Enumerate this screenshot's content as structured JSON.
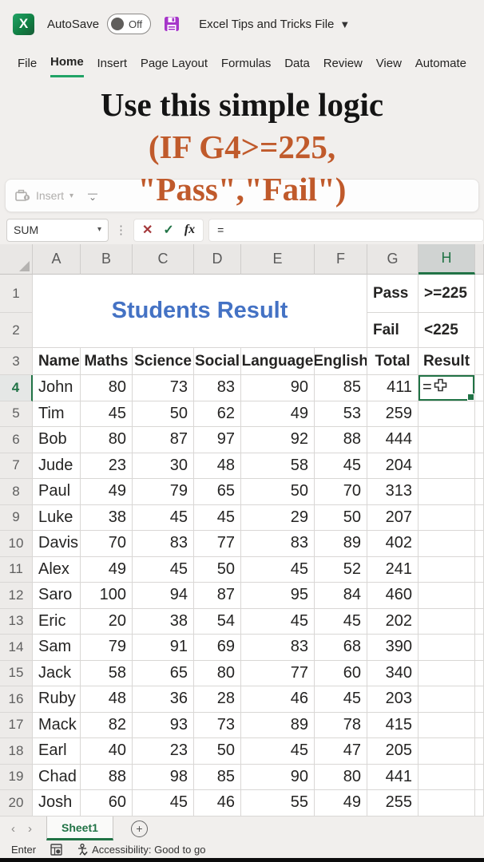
{
  "titlebar": {
    "app_icon": "excel-logo",
    "autosave_label": "AutoSave",
    "autosave_state": "Off",
    "save_icon": "save-floppy-icon",
    "doc_title": "Excel Tips and Tricks File",
    "doc_title_chevron": "chevron-down-icon"
  },
  "ribbon_tabs": [
    {
      "label": "File",
      "active": false
    },
    {
      "label": "Home",
      "active": true
    },
    {
      "label": "Insert",
      "active": false
    },
    {
      "label": "Page Layout",
      "active": false
    },
    {
      "label": "Formulas",
      "active": false
    },
    {
      "label": "Data",
      "active": false
    },
    {
      "label": "Review",
      "active": false
    },
    {
      "label": "View",
      "active": false
    },
    {
      "label": "Automate",
      "active": false
    }
  ],
  "overlay": {
    "line1": "Use this simple logic",
    "line2": "(IF G4>=225,",
    "line3": "\"Pass\",\"Fail\")",
    "accent_color": "#c05a2b"
  },
  "collapsed_ribbon": {
    "insert_label": "Insert"
  },
  "formula_bar": {
    "name_box_value": "SUM",
    "formula_value": "="
  },
  "grid": {
    "column_letters": [
      "A",
      "B",
      "C",
      "D",
      "E",
      "F",
      "G",
      "H"
    ],
    "selected_column": "H",
    "selected_row": 4,
    "title_cell": "Students Result",
    "title_color": "#4472c4",
    "criteria": [
      {
        "label": "Pass",
        "value": ">=225"
      },
      {
        "label": "Fail",
        "value": "<225"
      }
    ],
    "headers": [
      "Name",
      "Maths",
      "Science",
      "Social",
      "Language",
      "English",
      "Total",
      "Result"
    ],
    "rows": [
      {
        "row": 4,
        "name": "John",
        "scores": [
          80,
          73,
          83,
          90,
          85
        ],
        "total": 411,
        "result": "="
      },
      {
        "row": 5,
        "name": "Tim",
        "scores": [
          45,
          50,
          62,
          49,
          53
        ],
        "total": 259,
        "result": ""
      },
      {
        "row": 6,
        "name": "Bob",
        "scores": [
          80,
          87,
          97,
          92,
          88
        ],
        "total": 444,
        "result": ""
      },
      {
        "row": 7,
        "name": "Jude",
        "scores": [
          23,
          30,
          48,
          58,
          45
        ],
        "total": 204,
        "result": ""
      },
      {
        "row": 8,
        "name": "Paul",
        "scores": [
          49,
          79,
          65,
          50,
          70
        ],
        "total": 313,
        "result": ""
      },
      {
        "row": 9,
        "name": "Luke",
        "scores": [
          38,
          45,
          45,
          29,
          50
        ],
        "total": 207,
        "result": ""
      },
      {
        "row": 10,
        "name": "Davis",
        "scores": [
          70,
          83,
          77,
          83,
          89
        ],
        "total": 402,
        "result": ""
      },
      {
        "row": 11,
        "name": "Alex",
        "scores": [
          49,
          45,
          50,
          45,
          52
        ],
        "total": 241,
        "result": ""
      },
      {
        "row": 12,
        "name": "Saro",
        "scores": [
          100,
          94,
          87,
          95,
          84
        ],
        "total": 460,
        "result": ""
      },
      {
        "row": 13,
        "name": "Eric",
        "scores": [
          20,
          38,
          54,
          45,
          45
        ],
        "total": 202,
        "result": ""
      },
      {
        "row": 14,
        "name": "Sam",
        "scores": [
          79,
          91,
          69,
          83,
          68
        ],
        "total": 390,
        "result": ""
      },
      {
        "row": 15,
        "name": "Jack",
        "scores": [
          58,
          65,
          80,
          77,
          60
        ],
        "total": 340,
        "result": ""
      },
      {
        "row": 16,
        "name": "Ruby",
        "scores": [
          48,
          36,
          28,
          46,
          45
        ],
        "total": 203,
        "result": ""
      },
      {
        "row": 17,
        "name": "Mack",
        "scores": [
          82,
          93,
          73,
          89,
          78
        ],
        "total": 415,
        "result": ""
      },
      {
        "row": 18,
        "name": "Earl",
        "scores": [
          40,
          23,
          50,
          45,
          47
        ],
        "total": 205,
        "result": ""
      },
      {
        "row": 19,
        "name": "Chad",
        "scores": [
          88,
          98,
          85,
          90,
          80
        ],
        "total": 441,
        "result": ""
      },
      {
        "row": 20,
        "name": "Josh",
        "scores": [
          60,
          45,
          46,
          55,
          49
        ],
        "total": 255,
        "result": ""
      }
    ]
  },
  "sheet_bar": {
    "tab_label": "Sheet1",
    "add_sheet_icon": "add-sheet-icon"
  },
  "status_bar": {
    "mode": "Enter",
    "accessibility": "Accessibility: Good to go"
  },
  "colors": {
    "excel_green": "#217346",
    "home_underline_green": "#21a366",
    "title_blue": "#4472c4",
    "overlay_orange": "#c05a2b",
    "save_purple": "#a636c9",
    "cancel_red": "#a4373a",
    "chrome_bg": "#f1efed"
  }
}
